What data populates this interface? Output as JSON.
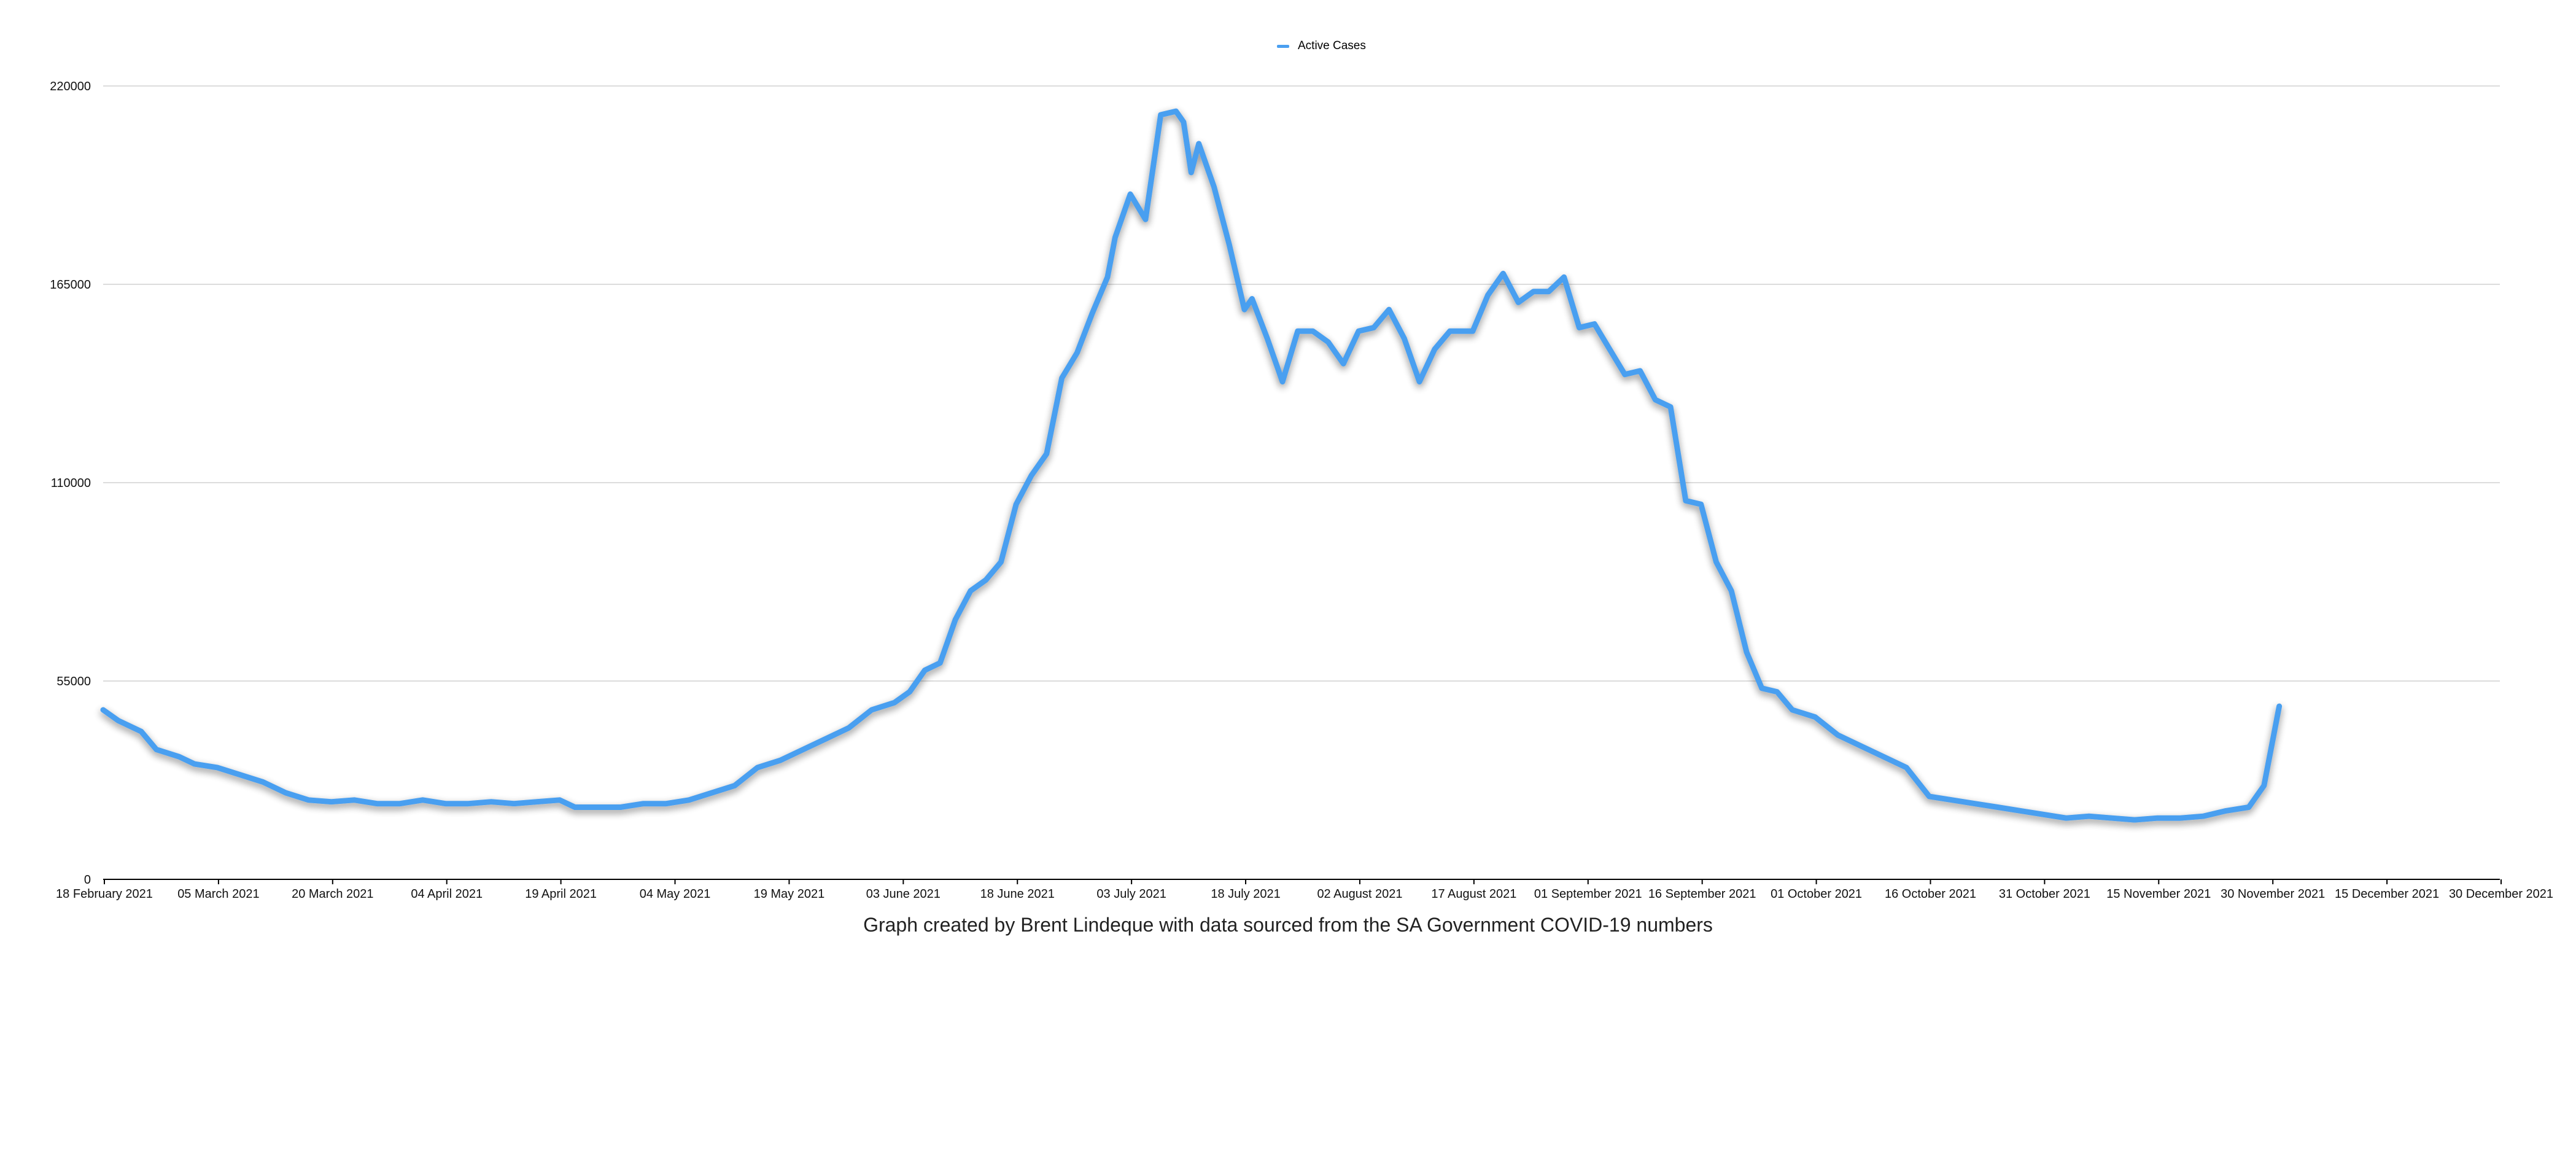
{
  "chart_data": {
    "type": "line",
    "title": "",
    "xlabel": "",
    "ylabel": "",
    "legend": {
      "position": "top-center",
      "entries": [
        "Active Cases"
      ]
    },
    "grid": {
      "horizontal": true,
      "vertical": false
    },
    "xlim": [
      "2021-02-18",
      "2021-12-30"
    ],
    "ylim": [
      0,
      220000
    ],
    "y_ticks": [
      0,
      55000,
      110000,
      165000,
      220000
    ],
    "x_tick_labels": [
      "18 February 2021",
      "05 March 2021",
      "20 March 2021",
      "04 April 2021",
      "19 April 2021",
      "04 May 2021",
      "19 May 2021",
      "03 June 2021",
      "18 June 2021",
      "03 July 2021",
      "18 July 2021",
      "02 August 2021",
      "17 August 2021",
      "01 September 2021",
      "16 September 2021",
      "01 October 2021",
      "16 October 2021",
      "31 October 2021",
      "15 November 2021",
      "30 November 2021",
      "15 December 2021",
      "30 December 2021"
    ],
    "series": [
      {
        "name": "Active Cases",
        "color": "#4a9ff0",
        "x": [
          "2021-02-18",
          "2021-02-20",
          "2021-02-23",
          "2021-02-25",
          "2021-02-28",
          "2021-03-02",
          "2021-03-05",
          "2021-03-08",
          "2021-03-11",
          "2021-03-14",
          "2021-03-17",
          "2021-03-20",
          "2021-03-23",
          "2021-03-26",
          "2021-03-29",
          "2021-04-01",
          "2021-04-04",
          "2021-04-07",
          "2021-04-10",
          "2021-04-13",
          "2021-04-16",
          "2021-04-19",
          "2021-04-21",
          "2021-04-24",
          "2021-04-27",
          "2021-04-30",
          "2021-05-03",
          "2021-05-06",
          "2021-05-09",
          "2021-05-12",
          "2021-05-15",
          "2021-05-18",
          "2021-05-21",
          "2021-05-24",
          "2021-05-27",
          "2021-05-30",
          "2021-06-02",
          "2021-06-04",
          "2021-06-06",
          "2021-06-08",
          "2021-06-10",
          "2021-06-12",
          "2021-06-14",
          "2021-06-16",
          "2021-06-18",
          "2021-06-20",
          "2021-06-22",
          "2021-06-24",
          "2021-06-26",
          "2021-06-28",
          "2021-06-30",
          "2021-07-01",
          "2021-07-03",
          "2021-07-05",
          "2021-07-07",
          "2021-07-09",
          "2021-07-10",
          "2021-07-11",
          "2021-07-12",
          "2021-07-14",
          "2021-07-16",
          "2021-07-18",
          "2021-07-19",
          "2021-07-21",
          "2021-07-23",
          "2021-07-25",
          "2021-07-27",
          "2021-07-29",
          "2021-07-31",
          "2021-08-02",
          "2021-08-04",
          "2021-08-06",
          "2021-08-08",
          "2021-08-10",
          "2021-08-12",
          "2021-08-14",
          "2021-08-17",
          "2021-08-19",
          "2021-08-21",
          "2021-08-23",
          "2021-08-25",
          "2021-08-27",
          "2021-08-29",
          "2021-08-31",
          "2021-09-02",
          "2021-09-04",
          "2021-09-06",
          "2021-09-08",
          "2021-09-10",
          "2021-09-12",
          "2021-09-14",
          "2021-09-16",
          "2021-09-18",
          "2021-09-20",
          "2021-09-22",
          "2021-09-24",
          "2021-09-26",
          "2021-09-28",
          "2021-10-01",
          "2021-10-04",
          "2021-10-07",
          "2021-10-10",
          "2021-10-13",
          "2021-10-16",
          "2021-10-19",
          "2021-10-22",
          "2021-10-25",
          "2021-10-28",
          "2021-10-31",
          "2021-11-03",
          "2021-11-06",
          "2021-11-09",
          "2021-11-12",
          "2021-11-15",
          "2021-11-18",
          "2021-11-21",
          "2021-11-24",
          "2021-11-27",
          "2021-11-29",
          "2021-12-01"
        ],
        "values": [
          47000,
          44000,
          41000,
          36000,
          34000,
          32000,
          31000,
          29000,
          27000,
          24000,
          22000,
          21500,
          22000,
          21000,
          21000,
          22000,
          21000,
          21000,
          21500,
          21000,
          21500,
          22000,
          20000,
          20000,
          20000,
          21000,
          21000,
          22000,
          24000,
          26000,
          31000,
          33000,
          36000,
          39000,
          42000,
          47000,
          49000,
          52000,
          58000,
          60000,
          72000,
          80000,
          83000,
          88000,
          104000,
          112000,
          118000,
          139000,
          146000,
          157000,
          167000,
          178000,
          190000,
          183000,
          212000,
          213000,
          210000,
          196000,
          204000,
          192000,
          176000,
          158000,
          161000,
          150000,
          138000,
          152000,
          152000,
          149000,
          143000,
          152000,
          153000,
          158000,
          150000,
          138000,
          147000,
          152000,
          152000,
          162000,
          168000,
          160000,
          163000,
          163000,
          167000,
          153000,
          154000,
          147000,
          140000,
          141000,
          133000,
          131000,
          105000,
          104000,
          88000,
          80000,
          63000,
          53000,
          52000,
          47000,
          45000,
          40000,
          37000,
          34000,
          31000,
          23000,
          22000,
          21000,
          20000,
          19000,
          18000,
          17000,
          17500,
          17000,
          16500,
          17000,
          17000,
          17500,
          19000,
          20000,
          26000,
          48000
        ]
      }
    ]
  },
  "caption": "Graph created by Brent Lindeque with data sourced from the SA Government COVID-19 numbers"
}
